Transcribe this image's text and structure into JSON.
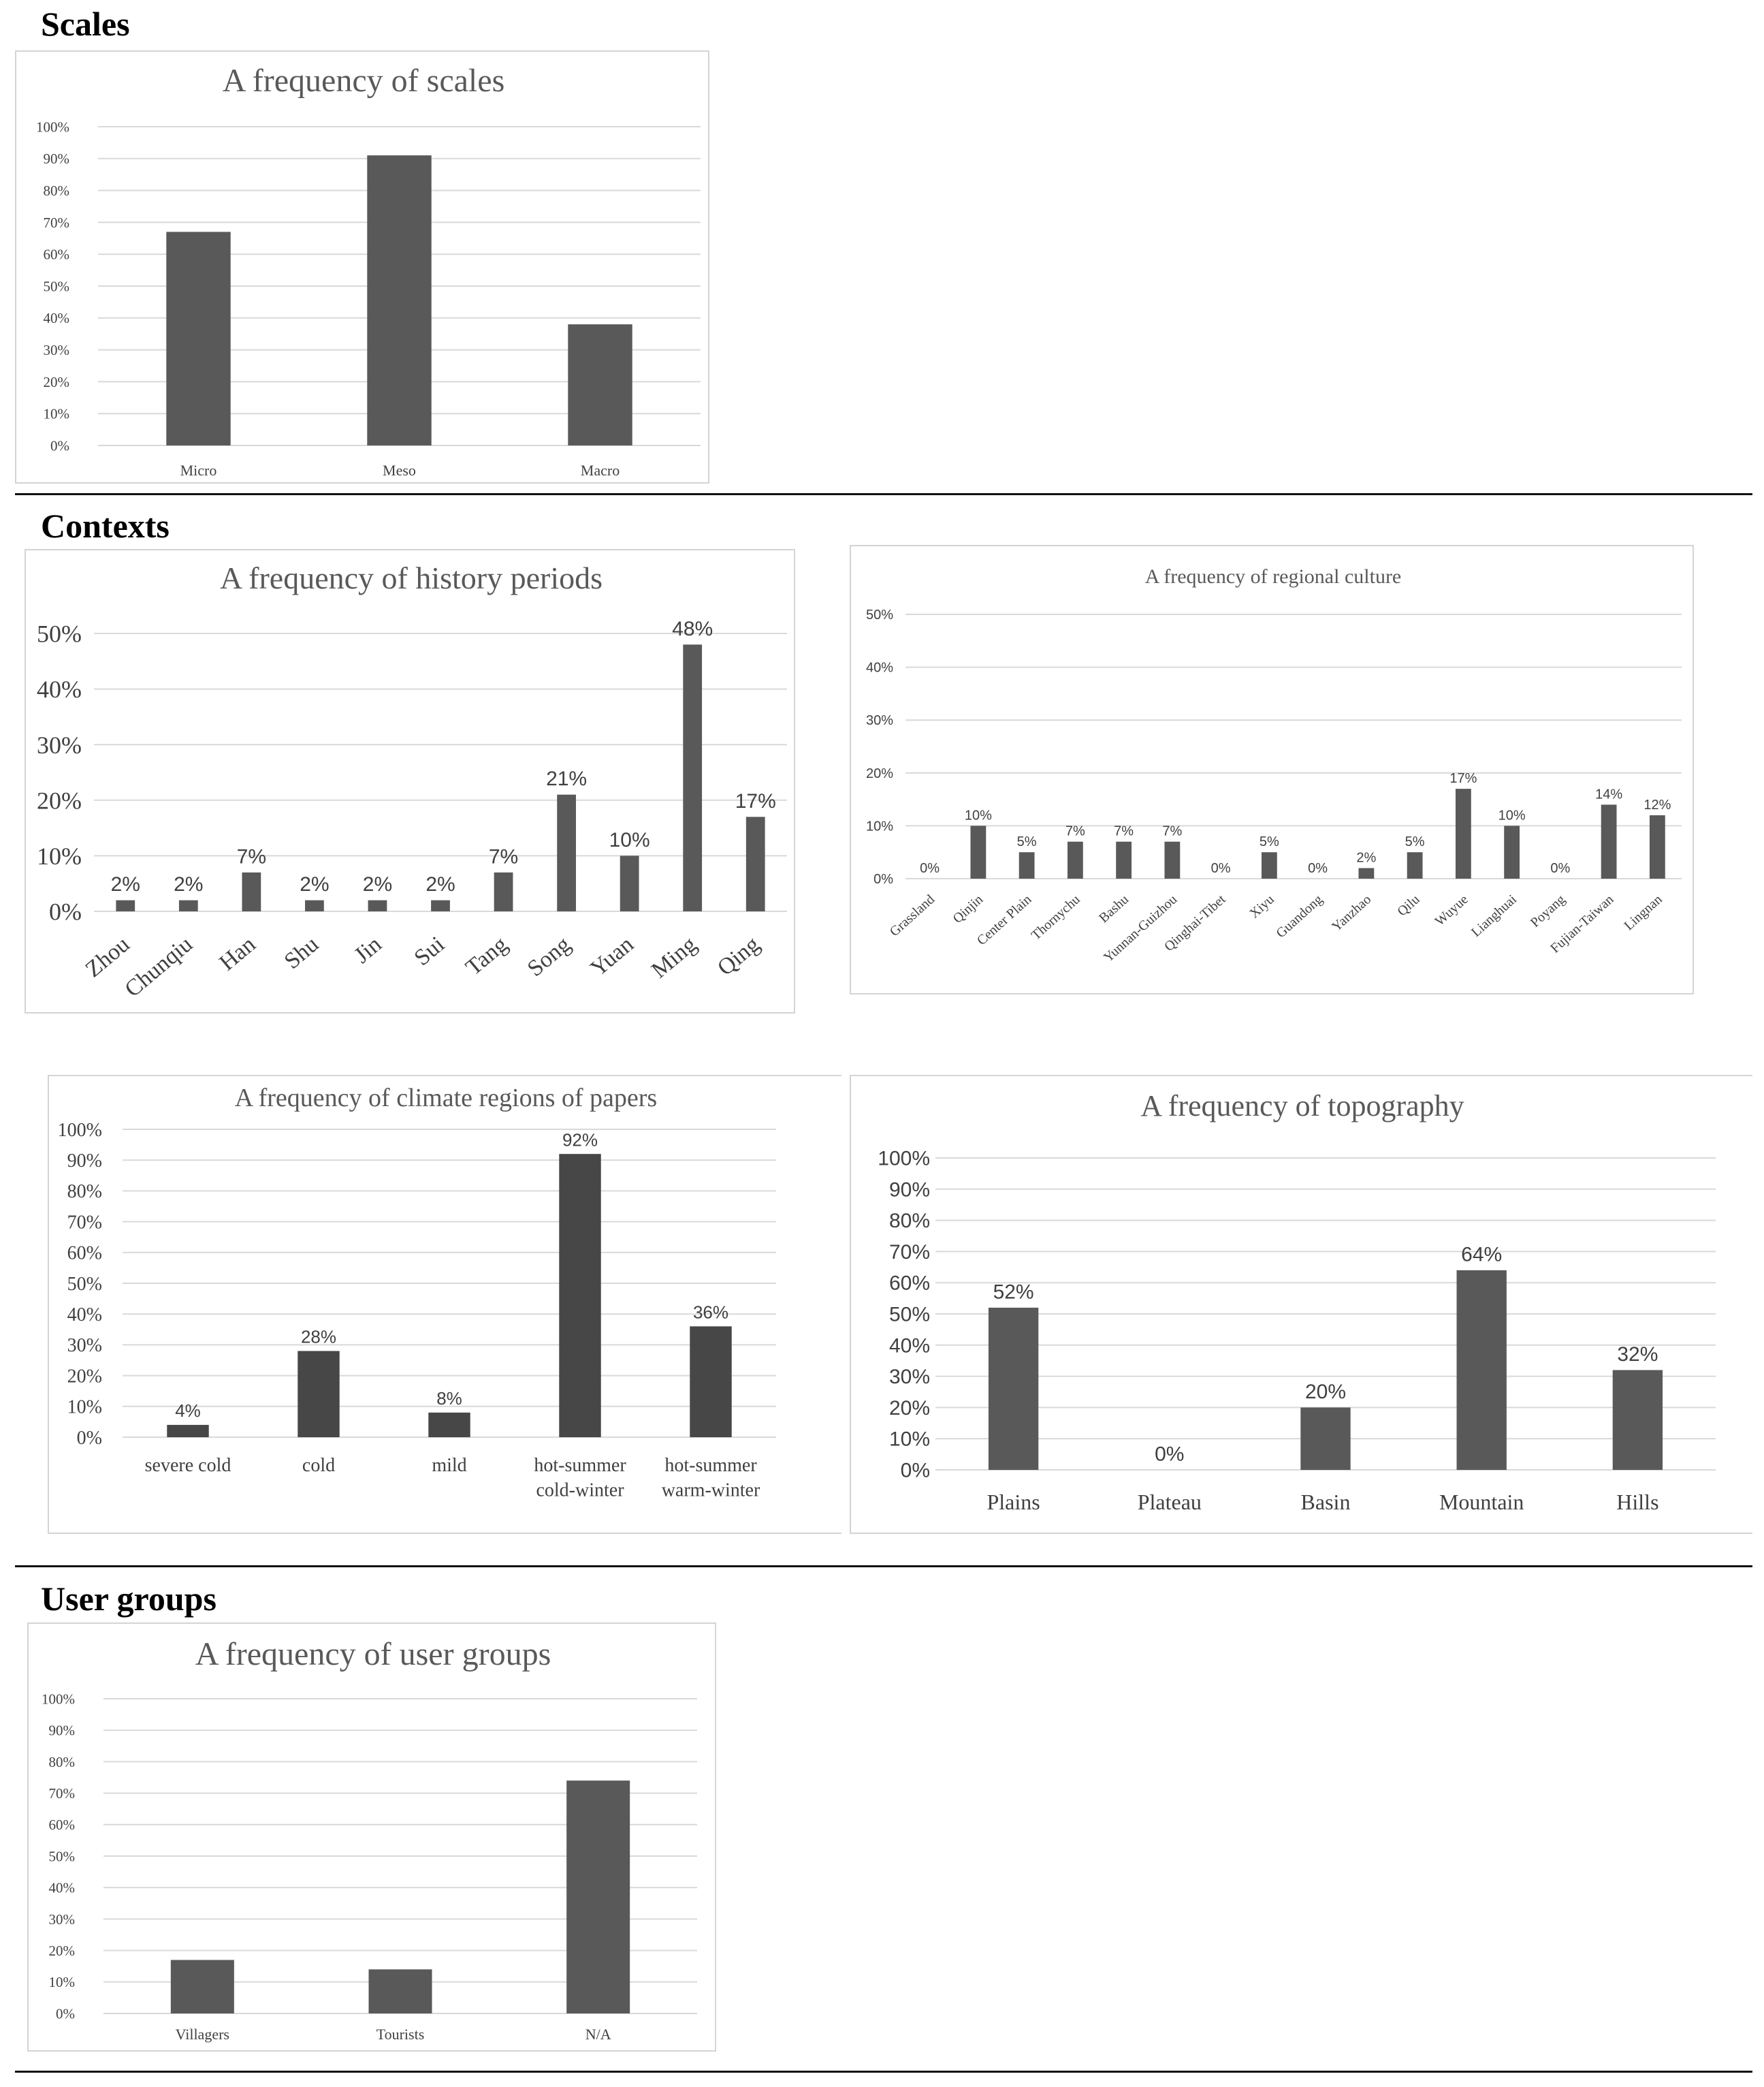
{
  "sections": {
    "scales": "Scales",
    "contexts": "Contexts",
    "user_groups": "User groups"
  },
  "chart_data": [
    {
      "id": "scales",
      "type": "bar",
      "title": "A frequency of  scales",
      "categories": [
        "Micro",
        "Meso",
        "Macro"
      ],
      "values": [
        67,
        91,
        38
      ],
      "ylim": [
        0,
        100
      ],
      "ytick_step": 10,
      "ytick_labels": [
        "0%",
        "10%",
        "20%",
        "30%",
        "40%",
        "50%",
        "60%",
        "70%",
        "80%",
        "90%",
        "100%"
      ],
      "data_labels": [],
      "grid": true,
      "bar_color": "#595959"
    },
    {
      "id": "history",
      "type": "bar",
      "title": "A frequency of  history periods",
      "categories": [
        "Zhou",
        "Chunqiu",
        "Han",
        "Shu",
        "Jin",
        "Sui",
        "Tang",
        "Song",
        "Yuan",
        "Ming",
        "Qing"
      ],
      "values": [
        2,
        2,
        7,
        2,
        2,
        2,
        7,
        21,
        10,
        48,
        17
      ],
      "ylim": [
        0,
        50
      ],
      "ytick_step": 10,
      "ytick_labels": [
        "0%",
        "10%",
        "20%",
        "30%",
        "40%",
        "50%"
      ],
      "data_labels": [
        "2%",
        "2%",
        "7%",
        "2%",
        "2%",
        "2%",
        "7%",
        "21%",
        "10%",
        "48%",
        "17%"
      ],
      "grid": true,
      "bar_color": "#595959"
    },
    {
      "id": "regional",
      "type": "bar",
      "title": "A frequency of  regional culture",
      "categories": [
        "Grassland",
        "Qinjin",
        "Center Plain",
        "Thornychu",
        "Bashu",
        "Yunnan-Guizhou",
        "Qinghai-Tibet",
        "Xiyu",
        "Guandong",
        "Yanzhao",
        "Qilu",
        "Wuyue",
        "Lianghuai",
        "Poyang",
        "Fujian-Taiwan",
        "Lingnan"
      ],
      "values": [
        0,
        10,
        5,
        7,
        7,
        7,
        0,
        5,
        0,
        2,
        5,
        17,
        10,
        0,
        14,
        12
      ],
      "ylim": [
        0,
        50
      ],
      "ytick_step": 10,
      "ytick_labels": [
        "0%",
        "10%",
        "20%",
        "30%",
        "40%",
        "50%"
      ],
      "data_labels": [
        "0%",
        "10%",
        "5%",
        "7%",
        "7%",
        "7%",
        "0%",
        "5%",
        "0%",
        "2%",
        "5%",
        "17%",
        "10%",
        "0%",
        "14%",
        "12%"
      ],
      "grid": true,
      "bar_color": "#595959"
    },
    {
      "id": "climate",
      "type": "bar",
      "title": "A frequency of climate regions of papers",
      "categories": [
        "severe cold",
        "cold",
        "mild",
        "hot-summer cold-winter",
        "hot-summer warm-winter"
      ],
      "category_lines": [
        [
          "severe cold"
        ],
        [
          "cold"
        ],
        [
          "mild"
        ],
        [
          "hot-summer",
          "cold-winter"
        ],
        [
          "hot-summer",
          "warm-winter"
        ]
      ],
      "values": [
        4,
        28,
        8,
        92,
        36
      ],
      "ylim": [
        0,
        100
      ],
      "ytick_step": 10,
      "ytick_labels": [
        "0%",
        "10%",
        "20%",
        "30%",
        "40%",
        "50%",
        "60%",
        "70%",
        "80%",
        "90%",
        "100%"
      ],
      "data_labels": [
        "4%",
        "28%",
        "8%",
        "92%",
        "36%"
      ],
      "grid": true,
      "bar_color": "#474747"
    },
    {
      "id": "topography",
      "type": "bar",
      "title": "A frequency of  topography",
      "categories": [
        "Plains",
        "Plateau",
        "Basin",
        "Mountain",
        "Hills"
      ],
      "values": [
        52,
        0,
        20,
        64,
        32
      ],
      "ylim": [
        0,
        100
      ],
      "ytick_step": 10,
      "ytick_labels": [
        "0%",
        "10%",
        "20%",
        "30%",
        "40%",
        "50%",
        "60%",
        "70%",
        "80%",
        "90%",
        "100%"
      ],
      "data_labels": [
        "52%",
        "0%",
        "20%",
        "64%",
        "32%"
      ],
      "grid": true,
      "bar_color": "#595959"
    },
    {
      "id": "users",
      "type": "bar",
      "title": "A frequency of  user groups",
      "categories": [
        "Villagers",
        "Tourists",
        "N/A"
      ],
      "values": [
        17,
        14,
        74
      ],
      "ylim": [
        0,
        100
      ],
      "ytick_step": 10,
      "ytick_labels": [
        "0%",
        "10%",
        "20%",
        "30%",
        "40%",
        "50%",
        "60%",
        "70%",
        "80%",
        "90%",
        "100%"
      ],
      "data_labels": [],
      "grid": true,
      "bar_color": "#595959"
    }
  ]
}
